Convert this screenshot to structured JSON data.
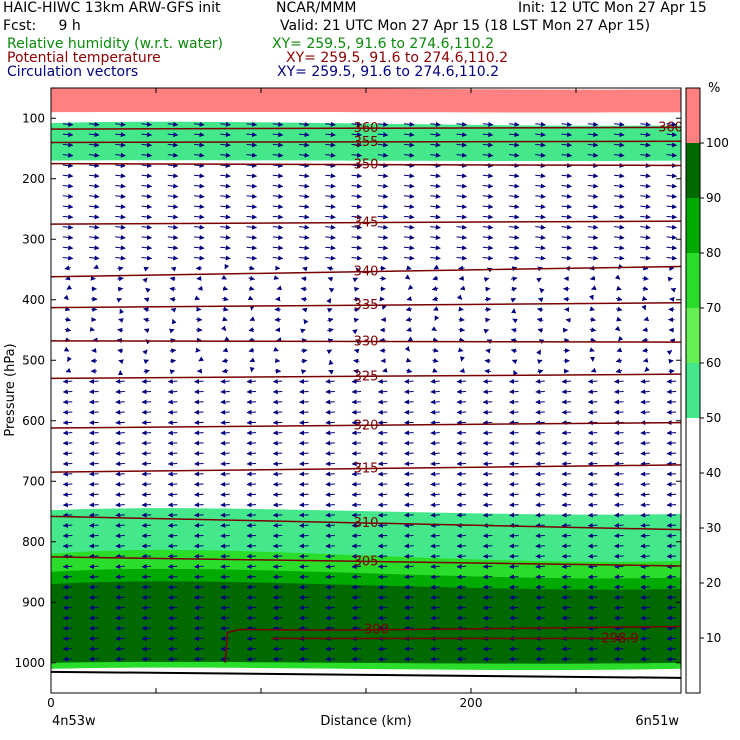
{
  "header": {
    "model": "HAIC-HIWC 13km ARW-GFS init",
    "org": "NCAR/MMM",
    "init": "Init: 12 UTC Mon 27 Apr 15",
    "fcst": "Fcst:     9 h",
    "valid": "Valid: 21 UTC Mon 27 Apr 15 (18 LST Mon 27 Apr 15)",
    "rh_label": "Relative humidity (w.r.t. water)",
    "rh_xy": "XY= 259.5, 91.6 to 274.6,110.2",
    "theta_label": "Potential temperature",
    "theta_xy": "XY= 259.5, 91.6 to 274.6,110.2",
    "vec_label": "Circulation vectors",
    "vec_xy": "XY= 259.5, 91.6 to 274.6,110.2"
  },
  "colors": {
    "rh_label": "#0a8a0a",
    "theta_label": "#8b0000",
    "vec_label": "#000080",
    "contour": "#7a0000",
    "vector": "#000080"
  },
  "chart_data": {
    "type": "heatmap",
    "title": "",
    "xlabel": "Distance (km)",
    "ylabel": "Pressure (hPa)",
    "xlim": [
      0,
      300
    ],
    "ylim": [
      1050,
      50
    ],
    "x_ticks": [
      0,
      200
    ],
    "y_ticks": [
      100,
      200,
      300,
      400,
      500,
      600,
      700,
      800,
      900,
      1000
    ],
    "x_left_label": "4n53w",
    "x_right_label": "6n51w",
    "colorbar": {
      "unit": "%",
      "levels": [
        10,
        20,
        30,
        40,
        50,
        60,
        70,
        80,
        90,
        100
      ],
      "colors": [
        "#ffffff",
        "#ffffff",
        "#ffffff",
        "#ffffff",
        "#44e88a",
        "#66ee55",
        "#2bdd2b",
        "#00aa00",
        "#006a00",
        "#ff8080"
      ],
      "labels": [
        "10",
        "20",
        "30",
        "40",
        "50",
        "60",
        "70",
        "80",
        "90",
        "100"
      ]
    },
    "theta_contours": [
      {
        "label": "360",
        "p_left": 118,
        "p_right": 115
      },
      {
        "label": "355",
        "p_left": 140,
        "p_right": 138
      },
      {
        "label": "350",
        "p_left": 175,
        "p_right": 178
      },
      {
        "label": "345",
        "p_left": 275,
        "p_right": 270
      },
      {
        "label": "340",
        "p_left": 362,
        "p_right": 345
      },
      {
        "label": "335",
        "p_left": 413,
        "p_right": 405
      },
      {
        "label": "330",
        "p_left": 468,
        "p_right": 470
      },
      {
        "label": "325",
        "p_left": 530,
        "p_right": 523
      },
      {
        "label": "320",
        "p_left": 612,
        "p_right": 603
      },
      {
        "label": "315",
        "p_left": 685,
        "p_right": 673
      },
      {
        "label": "310",
        "p_left": 758,
        "p_right": 780
      },
      {
        "label": "305",
        "p_left": 825,
        "p_right": 840
      },
      {
        "label": "300",
        "p_left": 1000,
        "p_right": 940
      },
      {
        "label": "298.9",
        "p_left": 960,
        "p_right": 960
      }
    ],
    "rh_regions": [
      {
        "level": 100,
        "p_top": 50,
        "p_bottom": 90
      },
      {
        "level": 50,
        "p_top": 108,
        "p_bottom": 170
      },
      {
        "level": 50,
        "p_top": 748,
        "p_bottom": 850
      },
      {
        "level": 70,
        "p_top": 820,
        "p_bottom": 1010
      },
      {
        "level": 80,
        "p_top": 850,
        "p_bottom": 1000
      },
      {
        "level": 90,
        "p_top": 870,
        "p_bottom": 1000
      }
    ],
    "wind_regimes": [
      {
        "p_top": 100,
        "p_bottom": 340,
        "direction": "east"
      },
      {
        "p_top": 340,
        "p_bottom": 520,
        "direction": "weak-mixed"
      },
      {
        "p_top": 520,
        "p_bottom": 1000,
        "direction": "west"
      }
    ]
  }
}
